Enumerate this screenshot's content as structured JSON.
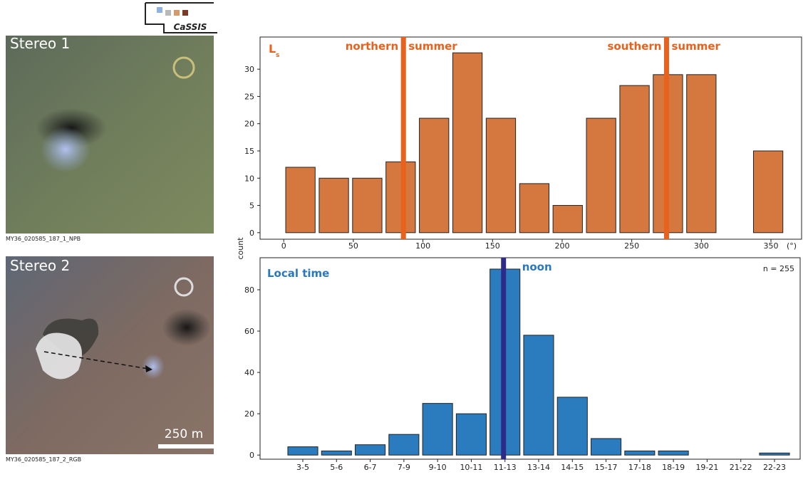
{
  "logo": "CaSSIS",
  "panels": [
    {
      "label": "Stereo 1",
      "caption": "MY36_020585_187_1_NPB"
    },
    {
      "label": "Stereo 2",
      "caption": "MY36_020585_187_2_RGB",
      "scale_bar": "250 m"
    }
  ],
  "chart_data": [
    {
      "type": "histogram",
      "ylabel": "count",
      "corner_label": "L",
      "corner_label_sub": "s",
      "xunit": "(°)",
      "bins": [
        0,
        24,
        48,
        72,
        96,
        120,
        144,
        168,
        192,
        216,
        240,
        264,
        288,
        312,
        336,
        360
      ],
      "values": [
        12,
        10,
        10,
        13,
        21,
        33,
        21,
        9,
        5,
        21,
        27,
        29,
        29,
        0,
        15
      ],
      "color": "#d5783f",
      "text_color": "#e8621d",
      "xlim": [
        -17,
        372
      ],
      "xticks": [
        0,
        50,
        100,
        150,
        200,
        250,
        300,
        350
      ],
      "ylim": [
        -1.2,
        35.9
      ],
      "yticks": [
        0,
        5,
        10,
        15,
        20,
        25,
        30
      ],
      "annotations": [
        {
          "text_left": "northern",
          "text_right": "summer",
          "x": 86,
          "color": "#e8621d"
        },
        {
          "text_left": "southern",
          "text_right": "summer",
          "x": 275,
          "color": "#e8621d"
        }
      ]
    },
    {
      "type": "bar",
      "corner_label": "Local time",
      "note": "n = 255",
      "categories": [
        "3-5",
        "5-6",
        "6-7",
        "7-9",
        "9-10",
        "10-11",
        "11-13",
        "13-14",
        "14-15",
        "15-17",
        "17-18",
        "18-19",
        "19-21",
        "21-22",
        "22-23"
      ],
      "values": [
        4,
        2,
        5,
        10,
        25,
        20,
        90,
        58,
        28,
        8,
        2,
        2,
        0,
        0,
        1
      ],
      "color": "#2b7bbf",
      "text_color": "#2b78c0",
      "ylim": [
        -2,
        95.5
      ],
      "yticks": [
        0,
        20,
        40,
        60,
        80
      ],
      "annotations": [
        {
          "text": "noon",
          "color": "#2e2a8a"
        }
      ]
    }
  ]
}
